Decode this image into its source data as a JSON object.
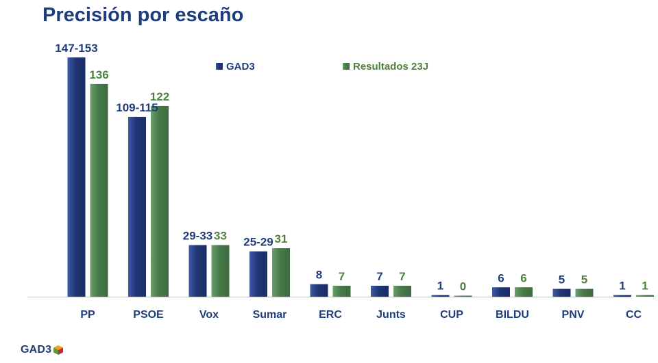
{
  "page": {
    "title": "Precisión por escaño",
    "logo_text": "GAD3"
  },
  "colors": {
    "gad3": "#1f3576",
    "gad3_light": "#3e5aa6",
    "results": "#467a48",
    "results_light": "#6aa06c",
    "title": "#1f3d7a",
    "results_label": "#4e7f3c",
    "axis": "#bfbfbf"
  },
  "chart_data": {
    "type": "bar",
    "title": "Precisión por escaño",
    "xlabel": "",
    "ylabel": "",
    "ylim": [
      0,
      160
    ],
    "grid": false,
    "legend_position": "top-center",
    "categories": [
      "PP",
      "PSOE",
      "Vox",
      "Sumar",
      "ERC",
      "Junts",
      "CUP",
      "BILDU",
      "PNV",
      "CC"
    ],
    "series": [
      {
        "name": "GAD3",
        "values": [
          153,
          115,
          33,
          29,
          8,
          7,
          1,
          6,
          5,
          1
        ],
        "labels": [
          "147-153",
          "109-115",
          "29-33",
          "25-29",
          "8",
          "7",
          "1",
          "6",
          "5",
          "1"
        ]
      },
      {
        "name": "Resultados 23J",
        "values": [
          136,
          122,
          33,
          31,
          7,
          7,
          0,
          6,
          5,
          1
        ],
        "labels": [
          "136",
          "122",
          "33",
          "31",
          "7",
          "7",
          "0",
          "6",
          "5",
          "1"
        ]
      }
    ]
  }
}
